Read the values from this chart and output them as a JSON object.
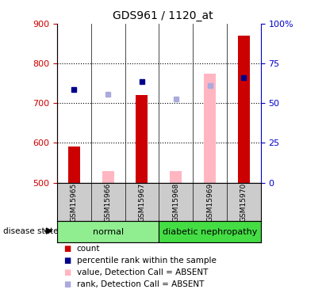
{
  "title": "GDS961 / 1120_at",
  "samples": [
    "GSM15965",
    "GSM15966",
    "GSM15967",
    "GSM15968",
    "GSM15969",
    "GSM15970"
  ],
  "ylim_left": [
    500,
    900
  ],
  "ylim_right": [
    0,
    100
  ],
  "yticks_left": [
    500,
    600,
    700,
    800,
    900
  ],
  "yticks_right": [
    0,
    25,
    50,
    75,
    100
  ],
  "ytick_labels_right": [
    "0",
    "25",
    "50",
    "75",
    "100%"
  ],
  "red_bars": [
    590,
    null,
    720,
    null,
    null,
    870
  ],
  "pink_bars": [
    null,
    530,
    null,
    530,
    775,
    null
  ],
  "blue_squares": [
    735,
    null,
    755,
    null,
    null,
    765
  ],
  "light_blue_squares": [
    null,
    723,
    null,
    710,
    745,
    null
  ],
  "bar_bottom": 500,
  "bar_width": 0.35,
  "red_color": "#cc0000",
  "pink_color": "#ffb6c1",
  "blue_color": "#00008b",
  "light_blue_color": "#aaaadd",
  "group1_color": "#90ee90",
  "group2_color": "#44dd44",
  "left_tick_color": "#cc0000",
  "right_tick_color": "#0000cc",
  "legend_items": [
    {
      "color": "#cc0000",
      "label": "count"
    },
    {
      "color": "#00008b",
      "label": "percentile rank within the sample"
    },
    {
      "color": "#ffb6c1",
      "label": "value, Detection Call = ABSENT"
    },
    {
      "color": "#aaaadd",
      "label": "rank, Detection Call = ABSENT"
    }
  ]
}
